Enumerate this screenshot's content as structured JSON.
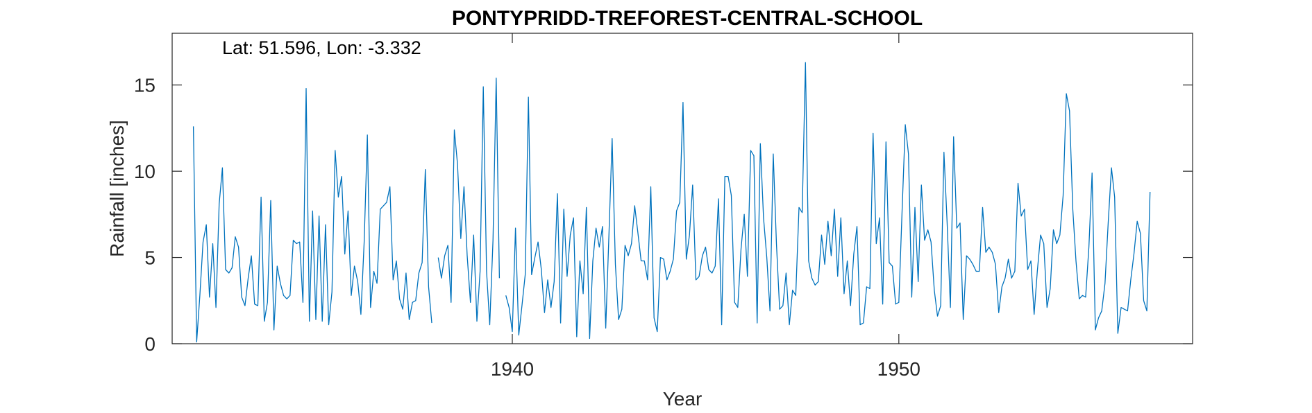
{
  "chart_data": {
    "type": "line",
    "title": "PONTYPRIDD-TREFOREST-CENTRAL-SCHOOL",
    "annotation": "Lat: 51.596, Lon: -3.332",
    "xlabel": "Year",
    "ylabel": "Rainfall [inches]",
    "xlim": [
      1931.2,
      1957.6
    ],
    "ylim": [
      0,
      18
    ],
    "xticks": [
      1940,
      1950
    ],
    "xtick_labels": [
      "1940",
      "1950"
    ],
    "yticks": [
      0,
      5,
      10,
      15
    ],
    "ytick_labels": [
      "0",
      "5",
      "10",
      "15"
    ],
    "grid": false,
    "legend": "none",
    "line_color": "#0072BD",
    "series": [
      {
        "x_start": 1931.75,
        "x_step": 0.0833333,
        "values": [
          [
            12.6,
            0.1,
            2.8,
            5.9,
            6.9,
            2.7,
            5.8,
            2.1,
            8.1,
            10.2,
            4.3,
            4.1,
            4.4,
            6.2,
            5.6,
            2.7,
            2.2,
            3.8,
            5.1,
            2.3,
            2.2,
            8.5,
            1.3,
            2.4,
            8.3,
            0.8,
            4.5,
            3.5,
            2.8,
            2.6,
            2.8,
            6.0,
            5.8,
            5.9,
            2.4,
            14.8,
            1.3,
            7.7,
            1.4,
            7.4,
            1.3,
            6.9,
            1.1,
            3.0,
            11.2,
            8.5,
            9.7,
            5.2,
            7.7,
            2.8,
            4.5,
            3.6,
            1.7,
            5.9,
            12.1,
            2.1,
            4.2,
            3.5,
            7.8,
            8.0,
            8.2,
            9.1,
            3.7,
            4.8,
            2.6,
            2.0,
            4.1,
            1.4,
            2.4,
            2.5,
            4.1,
            4.7,
            10.1,
            3.3,
            1.2
          ],
          null,
          [
            5.0,
            3.8,
            5.1,
            5.7,
            2.4,
            12.4,
            10.4,
            6.1,
            9.1,
            5.1,
            2.4,
            6.3,
            1.3,
            4.2,
            14.9,
            4.2,
            1.1,
            6.0,
            15.4,
            3.8
          ],
          null,
          [
            2.8,
            2.1,
            0.7,
            6.7,
            0.5,
            2.2,
            4.0,
            14.3,
            4.0,
            5.0,
            5.9,
            4.3,
            1.8,
            3.7,
            2.1,
            3.6,
            8.7,
            1.2,
            7.8,
            3.9,
            6.3,
            7.3,
            0.4,
            4.8,
            2.9,
            7.9,
            0.3,
            4.8,
            6.7,
            5.6,
            6.8,
            0.9,
            6.3,
            11.9,
            4.6,
            1.4,
            2.0,
            5.7,
            5.1,
            5.8,
            8.0,
            6.4,
            4.8,
            4.8,
            3.7,
            9.1,
            1.5,
            0.7,
            5.0,
            4.9,
            3.7,
            4.2,
            4.9,
            7.7,
            8.2,
            14.0,
            4.9,
            6.3,
            9.2,
            3.7,
            3.9,
            5.1,
            5.6,
            4.3,
            4.1,
            4.5,
            8.4,
            1.1,
            9.7,
            9.7,
            8.6,
            2.4,
            2.1,
            5.5,
            7.5,
            3.9,
            11.2,
            10.9,
            1.2,
            11.6,
            7.3,
            5.0,
            1.9,
            11.0,
            5.8,
            2.0,
            2.2,
            4.1,
            1.1,
            3.1,
            2.8,
            7.9,
            7.6,
            16.3,
            4.8,
            3.8,
            3.4,
            3.6,
            6.3,
            4.6,
            7.1,
            5.1,
            7.8,
            3.9,
            7.3,
            2.9,
            4.8,
            2.2,
            5.2,
            6.8,
            1.1,
            1.2,
            3.3,
            3.2,
            12.2,
            5.8,
            7.3,
            2.3,
            11.7,
            4.7,
            4.5,
            2.3,
            2.4,
            7.7,
            12.7,
            11.0,
            2.7,
            7.9,
            3.6,
            9.2,
            6.0,
            6.6,
            5.9,
            3.1,
            1.6,
            2.2,
            11.1,
            7.0,
            2.1,
            12.0,
            6.7,
            7.0,
            1.4,
            5.1,
            4.9,
            4.6,
            4.2,
            4.2,
            7.9,
            5.3,
            5.6,
            5.3,
            4.6,
            1.8,
            3.3,
            3.8,
            4.9,
            3.8,
            4.2,
            9.3,
            7.4,
            7.8,
            4.3,
            4.8,
            1.7,
            4.2,
            6.3,
            5.8,
            2.1,
            3.2,
            6.6,
            5.8,
            6.3,
            8.6,
            14.5,
            13.5,
            7.8,
            4.8,
            2.6,
            2.8,
            2.7,
            5.6,
            9.9,
            0.8,
            1.5,
            1.9,
            3.5,
            7.0,
            10.2,
            8.5,
            0.6,
            2.1,
            2.0,
            1.9,
            3.7,
            5.2,
            7.1,
            6.4,
            2.5,
            1.9,
            8.8
          ]
        ]
      }
    ]
  }
}
